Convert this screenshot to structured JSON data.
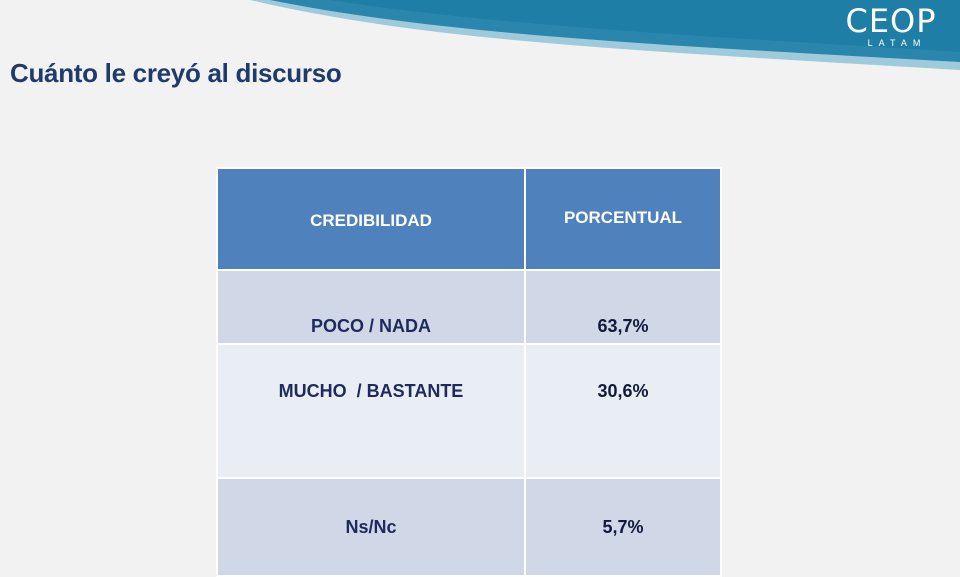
{
  "header": {
    "brand": "CEOP",
    "brand_sub": "LATAM",
    "colors": {
      "wave_dark": "#1f7ea6",
      "wave_light": "#5aa9c9"
    }
  },
  "title": "Cuánto le creyó al discurso",
  "table": {
    "headers": [
      "CREDIBILIDAD",
      "PORCENTUAL"
    ],
    "rows": [
      {
        "label": "POCO / NADA",
        "value": "63,7%"
      },
      {
        "label": "MUCHO  / BASTANTE",
        "value": "30,6%"
      },
      {
        "label": "Ns/Nc",
        "value": "5,7%"
      }
    ],
    "colors": {
      "header_bg": "#4f81bd",
      "row_dark": "#d0d8e8",
      "row_light": "#e9edf4"
    }
  }
}
